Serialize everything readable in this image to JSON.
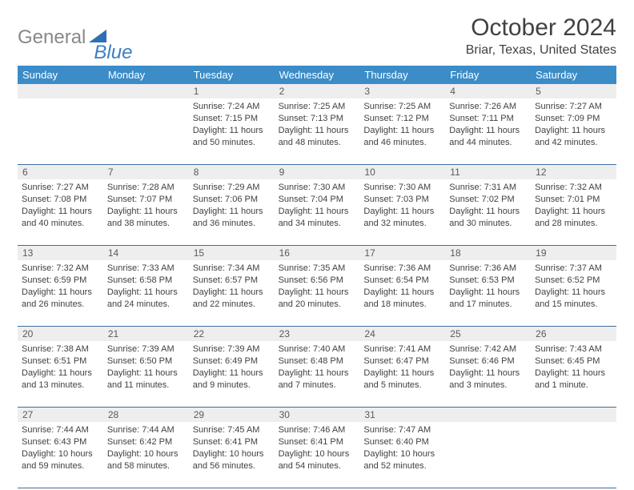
{
  "logo": {
    "text1": "General",
    "text2": "Blue"
  },
  "title": "October 2024",
  "location": "Briar, Texas, United States",
  "colors": {
    "header_bg": "#3b8cc7",
    "header_text": "#ffffff",
    "daynum_bg": "#eeeeee",
    "row_border": "#3b6fa0",
    "body_text": "#414141",
    "logo_gray": "#888888",
    "logo_blue": "#3b7fc4"
  },
  "weekdays": [
    "Sunday",
    "Monday",
    "Tuesday",
    "Wednesday",
    "Thursday",
    "Friday",
    "Saturday"
  ],
  "weeks": [
    [
      null,
      null,
      {
        "n": "1",
        "sr": "7:24 AM",
        "ss": "7:15 PM",
        "dl": "11 hours and 50 minutes."
      },
      {
        "n": "2",
        "sr": "7:25 AM",
        "ss": "7:13 PM",
        "dl": "11 hours and 48 minutes."
      },
      {
        "n": "3",
        "sr": "7:25 AM",
        "ss": "7:12 PM",
        "dl": "11 hours and 46 minutes."
      },
      {
        "n": "4",
        "sr": "7:26 AM",
        "ss": "7:11 PM",
        "dl": "11 hours and 44 minutes."
      },
      {
        "n": "5",
        "sr": "7:27 AM",
        "ss": "7:09 PM",
        "dl": "11 hours and 42 minutes."
      }
    ],
    [
      {
        "n": "6",
        "sr": "7:27 AM",
        "ss": "7:08 PM",
        "dl": "11 hours and 40 minutes."
      },
      {
        "n": "7",
        "sr": "7:28 AM",
        "ss": "7:07 PM",
        "dl": "11 hours and 38 minutes."
      },
      {
        "n": "8",
        "sr": "7:29 AM",
        "ss": "7:06 PM",
        "dl": "11 hours and 36 minutes."
      },
      {
        "n": "9",
        "sr": "7:30 AM",
        "ss": "7:04 PM",
        "dl": "11 hours and 34 minutes."
      },
      {
        "n": "10",
        "sr": "7:30 AM",
        "ss": "7:03 PM",
        "dl": "11 hours and 32 minutes."
      },
      {
        "n": "11",
        "sr": "7:31 AM",
        "ss": "7:02 PM",
        "dl": "11 hours and 30 minutes."
      },
      {
        "n": "12",
        "sr": "7:32 AM",
        "ss": "7:01 PM",
        "dl": "11 hours and 28 minutes."
      }
    ],
    [
      {
        "n": "13",
        "sr": "7:32 AM",
        "ss": "6:59 PM",
        "dl": "11 hours and 26 minutes."
      },
      {
        "n": "14",
        "sr": "7:33 AM",
        "ss": "6:58 PM",
        "dl": "11 hours and 24 minutes."
      },
      {
        "n": "15",
        "sr": "7:34 AM",
        "ss": "6:57 PM",
        "dl": "11 hours and 22 minutes."
      },
      {
        "n": "16",
        "sr": "7:35 AM",
        "ss": "6:56 PM",
        "dl": "11 hours and 20 minutes."
      },
      {
        "n": "17",
        "sr": "7:36 AM",
        "ss": "6:54 PM",
        "dl": "11 hours and 18 minutes."
      },
      {
        "n": "18",
        "sr": "7:36 AM",
        "ss": "6:53 PM",
        "dl": "11 hours and 17 minutes."
      },
      {
        "n": "19",
        "sr": "7:37 AM",
        "ss": "6:52 PM",
        "dl": "11 hours and 15 minutes."
      }
    ],
    [
      {
        "n": "20",
        "sr": "7:38 AM",
        "ss": "6:51 PM",
        "dl": "11 hours and 13 minutes."
      },
      {
        "n": "21",
        "sr": "7:39 AM",
        "ss": "6:50 PM",
        "dl": "11 hours and 11 minutes."
      },
      {
        "n": "22",
        "sr": "7:39 AM",
        "ss": "6:49 PM",
        "dl": "11 hours and 9 minutes."
      },
      {
        "n": "23",
        "sr": "7:40 AM",
        "ss": "6:48 PM",
        "dl": "11 hours and 7 minutes."
      },
      {
        "n": "24",
        "sr": "7:41 AM",
        "ss": "6:47 PM",
        "dl": "11 hours and 5 minutes."
      },
      {
        "n": "25",
        "sr": "7:42 AM",
        "ss": "6:46 PM",
        "dl": "11 hours and 3 minutes."
      },
      {
        "n": "26",
        "sr": "7:43 AM",
        "ss": "6:45 PM",
        "dl": "11 hours and 1 minute."
      }
    ],
    [
      {
        "n": "27",
        "sr": "7:44 AM",
        "ss": "6:43 PM",
        "dl": "10 hours and 59 minutes."
      },
      {
        "n": "28",
        "sr": "7:44 AM",
        "ss": "6:42 PM",
        "dl": "10 hours and 58 minutes."
      },
      {
        "n": "29",
        "sr": "7:45 AM",
        "ss": "6:41 PM",
        "dl": "10 hours and 56 minutes."
      },
      {
        "n": "30",
        "sr": "7:46 AM",
        "ss": "6:41 PM",
        "dl": "10 hours and 54 minutes."
      },
      {
        "n": "31",
        "sr": "7:47 AM",
        "ss": "6:40 PM",
        "dl": "10 hours and 52 minutes."
      },
      null,
      null
    ]
  ],
  "labels": {
    "sunrise": "Sunrise: ",
    "sunset": "Sunset: ",
    "daylight": "Daylight: "
  }
}
